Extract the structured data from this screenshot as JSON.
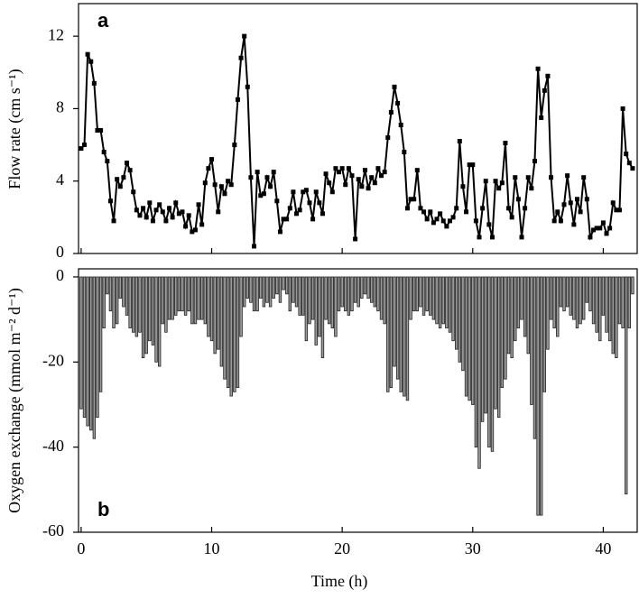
{
  "chart_data": [
    {
      "type": "line",
      "ylabel": "Flow rate (cm s⁻¹)",
      "annotation": "a",
      "x": [
        0,
        0.25,
        0.5,
        0.75,
        1,
        1.25,
        1.5,
        1.75,
        2,
        2.25,
        2.5,
        2.75,
        3,
        3.25,
        3.5,
        3.75,
        4,
        4.25,
        4.5,
        4.75,
        5,
        5.25,
        5.5,
        5.75,
        6,
        6.25,
        6.5,
        6.75,
        7,
        7.25,
        7.5,
        7.75,
        8,
        8.25,
        8.5,
        8.75,
        9,
        9.25,
        9.5,
        9.75,
        10,
        10.25,
        10.5,
        10.75,
        11,
        11.25,
        11.5,
        11.75,
        12,
        12.25,
        12.5,
        12.75,
        13,
        13.25,
        13.5,
        13.75,
        14,
        14.25,
        14.5,
        14.75,
        15,
        15.25,
        15.5,
        15.75,
        16,
        16.25,
        16.5,
        16.75,
        17,
        17.25,
        17.5,
        17.75,
        18,
        18.25,
        18.5,
        18.75,
        19,
        19.25,
        19.5,
        19.75,
        20,
        20.25,
        20.5,
        20.75,
        21,
        21.25,
        21.5,
        21.75,
        22,
        22.25,
        22.5,
        22.75,
        23,
        23.25,
        23.5,
        23.75,
        24,
        24.25,
        24.5,
        24.75,
        25,
        25.25,
        25.5,
        25.75,
        26,
        26.25,
        26.5,
        26.75,
        27,
        27.25,
        27.5,
        27.75,
        28,
        28.25,
        28.5,
        28.75,
        29,
        29.25,
        29.5,
        29.75,
        30,
        30.25,
        30.5,
        30.75,
        31,
        31.25,
        31.5,
        31.75,
        32,
        32.25,
        32.5,
        32.75,
        33,
        33.25,
        33.5,
        33.75,
        34,
        34.25,
        34.5,
        34.75,
        35,
        35.25,
        35.5,
        35.75,
        36,
        36.25,
        36.5,
        36.75,
        37,
        37.25,
        37.5,
        37.75,
        38,
        38.25,
        38.5,
        38.75,
        39,
        39.25,
        39.5,
        39.75,
        40,
        40.25,
        40.5,
        40.75,
        41,
        41.25,
        41.5,
        41.75,
        42,
        42.25
      ],
      "series": [
        {
          "name": "Flow rate",
          "color": "#000000",
          "values": [
            5.8,
            6.0,
            11.0,
            10.6,
            9.4,
            6.8,
            6.8,
            5.6,
            5.1,
            2.9,
            1.8,
            4.1,
            3.7,
            4.2,
            5.0,
            4.6,
            3.4,
            2.4,
            2.1,
            2.5,
            2.0,
            2.8,
            1.8,
            2.4,
            2.7,
            2.3,
            1.8,
            2.5,
            2.0,
            2.8,
            2.2,
            2.3,
            1.5,
            2.1,
            1.2,
            1.3,
            2.7,
            1.6,
            3.9,
            4.7,
            5.2,
            3.8,
            2.3,
            3.7,
            3.3,
            4.0,
            3.8,
            6.0,
            8.5,
            10.8,
            12.0,
            9.2,
            4.2,
            0.4,
            4.5,
            3.2,
            3.3,
            4.2,
            3.7,
            4.5,
            2.9,
            1.2,
            1.9,
            1.9,
            2.5,
            3.4,
            2.2,
            2.4,
            3.4,
            3.5,
            2.8,
            1.9,
            3.4,
            2.8,
            2.2,
            4.4,
            3.9,
            3.4,
            4.7,
            4.5,
            4.7,
            3.8,
            4.7,
            4.3,
            0.8,
            4.1,
            3.7,
            4.6,
            3.6,
            4.2,
            3.9,
            4.7,
            4.3,
            4.5,
            6.4,
            7.8,
            9.2,
            8.3,
            7.1,
            5.6,
            2.5,
            3.0,
            3.0,
            4.6,
            2.5,
            2.3,
            1.9,
            2.3,
            1.7,
            1.9,
            2.2,
            1.8,
            1.5,
            1.8,
            2.0,
            2.5,
            6.2,
            3.7,
            2.3,
            4.9,
            4.9,
            1.8,
            0.9,
            2.5,
            4.0,
            1.6,
            0.9,
            4.0,
            3.6,
            3.9,
            6.1,
            2.5,
            2.0,
            4.2,
            3.0,
            0.9,
            2.5,
            4.2,
            3.6,
            5.1,
            10.2,
            7.5,
            9.0,
            9.8,
            4.2,
            1.8,
            2.3,
            1.8,
            2.7,
            4.3,
            2.8,
            1.6,
            3.0,
            2.3,
            4.2,
            3.0,
            0.9,
            1.3,
            1.4,
            1.4,
            1.7,
            1.1,
            1.4,
            2.8,
            2.4,
            2.4,
            8.0,
            5.5,
            5.0,
            4.7
          ]
        }
      ],
      "xlim": [
        -0.2,
        42.6
      ],
      "xticks": [
        0,
        10,
        20,
        30,
        40
      ],
      "ylim": [
        0,
        13.8
      ],
      "yticks": [
        0,
        4,
        8,
        12
      ]
    },
    {
      "type": "bar",
      "xlabel": "Time (h)",
      "ylabel": "Oxygen exchange (mmol m⁻² d⁻¹)",
      "annotation": "b",
      "x": [
        0,
        0.25,
        0.5,
        0.75,
        1,
        1.25,
        1.5,
        1.75,
        2,
        2.25,
        2.5,
        2.75,
        3,
        3.25,
        3.5,
        3.75,
        4,
        4.25,
        4.5,
        4.75,
        5,
        5.25,
        5.5,
        5.75,
        6,
        6.25,
        6.5,
        6.75,
        7,
        7.25,
        7.5,
        7.75,
        8,
        8.25,
        8.5,
        8.75,
        9,
        9.25,
        9.5,
        9.75,
        10,
        10.25,
        10.5,
        10.75,
        11,
        11.25,
        11.5,
        11.75,
        12,
        12.25,
        12.5,
        12.75,
        13,
        13.25,
        13.5,
        13.75,
        14,
        14.25,
        14.5,
        14.75,
        15,
        15.25,
        15.5,
        15.75,
        16,
        16.25,
        16.5,
        16.75,
        17,
        17.25,
        17.5,
        17.75,
        18,
        18.25,
        18.5,
        18.75,
        19,
        19.25,
        19.5,
        19.75,
        20,
        20.25,
        20.5,
        20.75,
        21,
        21.25,
        21.5,
        21.75,
        22,
        22.25,
        22.5,
        22.75,
        23,
        23.25,
        23.5,
        23.75,
        24,
        24.25,
        24.5,
        24.75,
        25,
        25.25,
        25.5,
        25.75,
        26,
        26.25,
        26.5,
        26.75,
        27,
        27.25,
        27.5,
        27.75,
        28,
        28.25,
        28.5,
        28.75,
        29,
        29.25,
        29.5,
        29.75,
        30,
        30.25,
        30.5,
        30.75,
        31,
        31.25,
        31.5,
        31.75,
        32,
        32.25,
        32.5,
        32.75,
        33,
        33.25,
        33.5,
        33.75,
        34,
        34.25,
        34.5,
        34.75,
        35,
        35.25,
        35.5,
        35.75,
        36,
        36.25,
        36.5,
        36.75,
        37,
        37.25,
        37.5,
        37.75,
        38,
        38.25,
        38.5,
        38.75,
        39,
        39.25,
        39.5,
        39.75,
        40,
        40.25,
        40.5,
        40.75,
        41,
        41.25,
        41.5,
        41.75,
        42,
        42.25
      ],
      "series": [
        {
          "name": "Oxygen exchange",
          "color": "#9a9a9a",
          "values": [
            -31,
            -33,
            -35,
            -36,
            -38,
            -33,
            -27,
            -12,
            -4,
            -8,
            -12,
            -11,
            -5,
            -7,
            -9,
            -12,
            -13,
            -14,
            -13,
            -19,
            -18,
            -15,
            -16,
            -20,
            -21,
            -11,
            -13,
            -10,
            -10,
            -9,
            -8,
            -8,
            -9,
            -8,
            -11,
            -11,
            -10,
            -10,
            -11,
            -14,
            -15,
            -18,
            -17,
            -21,
            -24,
            -26,
            -28,
            -27,
            -26,
            -14,
            -7,
            -5,
            -6,
            -8,
            -8,
            -5,
            -7,
            -6,
            -7,
            -5,
            -4,
            -6,
            -3,
            -4,
            -8,
            -6,
            -7,
            -9,
            -9,
            -15,
            -11,
            -10,
            -16,
            -14,
            -19,
            -10,
            -11,
            -12,
            -14,
            -8,
            -7,
            -8,
            -9,
            -8,
            -6,
            -7,
            -5,
            -4,
            -5,
            -6,
            -7,
            -8,
            -10,
            -11,
            -27,
            -26,
            -21,
            -24,
            -27,
            -28,
            -29,
            -10,
            -8,
            -8,
            -7,
            -9,
            -8,
            -9,
            -10,
            -11,
            -12,
            -11,
            -12,
            -13,
            -15,
            -17,
            -20,
            -22,
            -28,
            -29,
            -30,
            -40,
            -45,
            -34,
            -32,
            -40,
            -41,
            -31,
            -33,
            -26,
            -24,
            -18,
            -19,
            -15,
            -12,
            -10,
            -14,
            -18,
            -30,
            -38,
            -56,
            -56,
            -27,
            -17,
            -10,
            -12,
            -14,
            -7,
            -8,
            -7,
            -9,
            -10,
            -12,
            -11,
            -10,
            -6,
            -8,
            -11,
            -13,
            -15,
            -9,
            -13,
            -15,
            -18,
            -19,
            -11,
            -12,
            -51,
            -12,
            -4
          ]
        }
      ],
      "xlim": [
        -0.2,
        42.6
      ],
      "xticks": [
        0,
        10,
        20,
        30,
        40
      ],
      "ylim": [
        -60,
        1.9
      ],
      "yticks": [
        0,
        -20,
        -40,
        -60
      ]
    }
  ]
}
